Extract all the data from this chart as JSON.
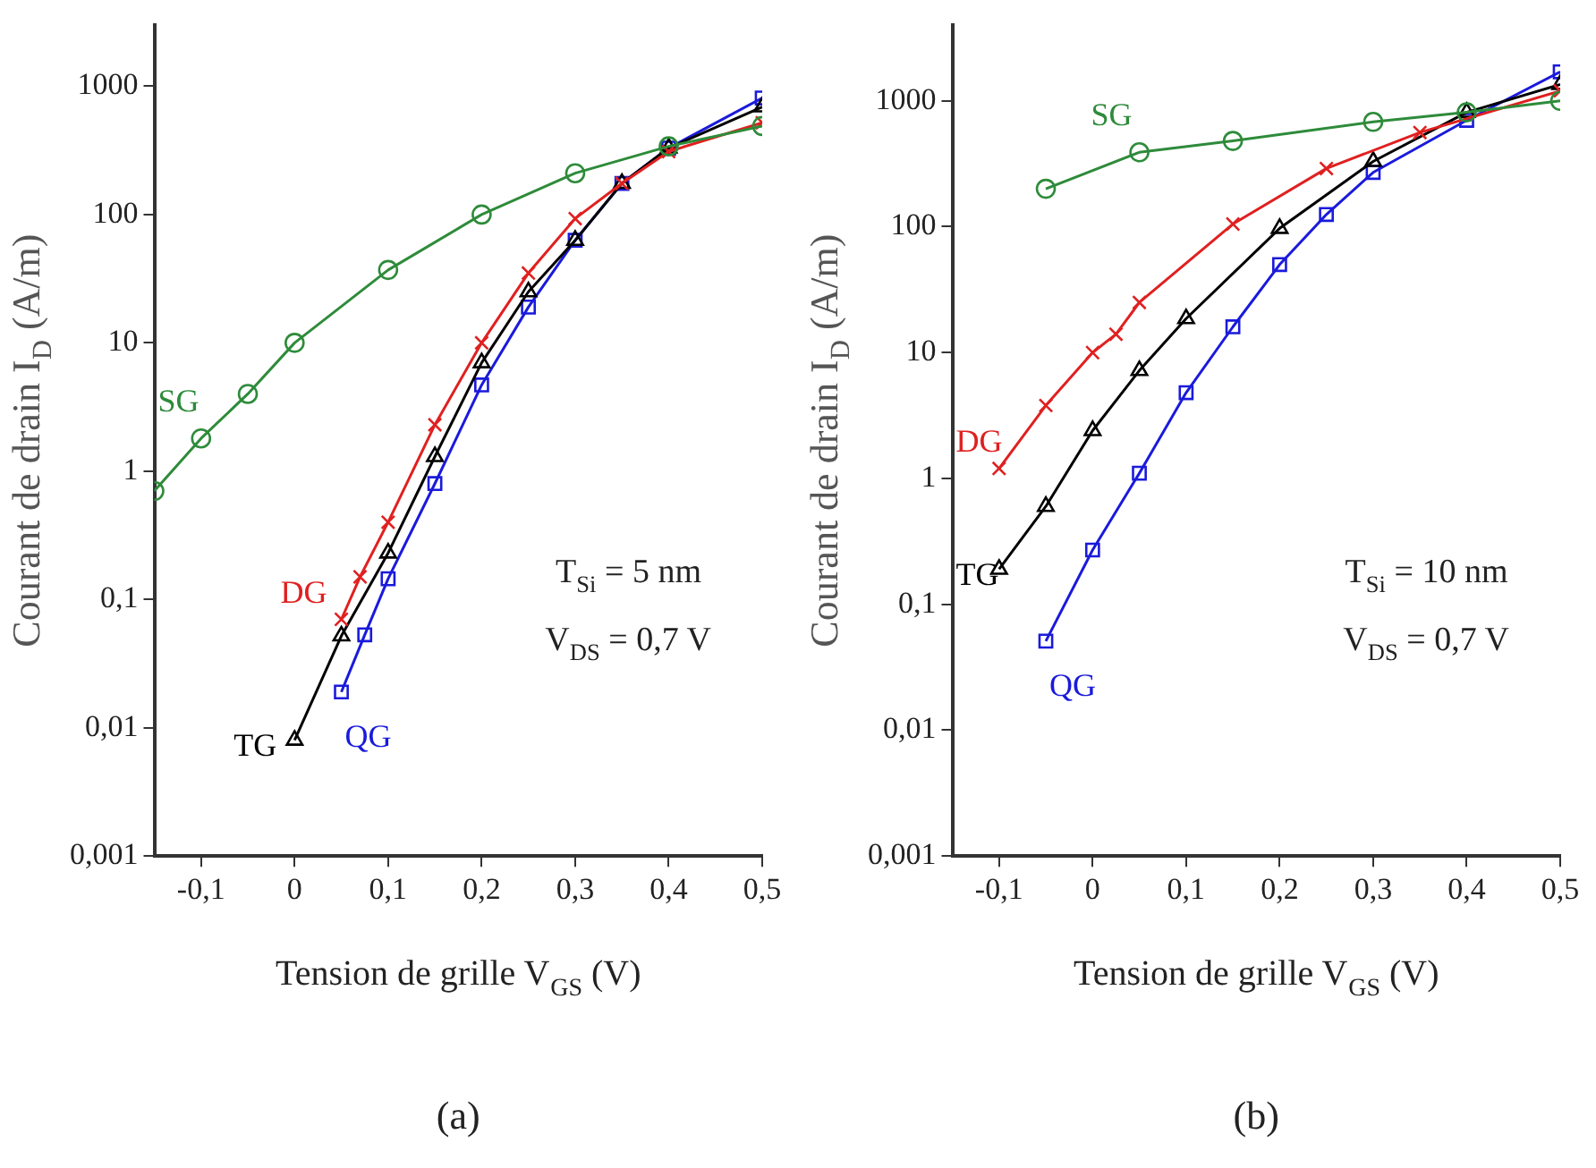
{
  "chart_data": [
    {
      "type": "line",
      "xlabel": "Tension de grille V$_{GS}$ (V)",
      "ylabel": "Courant de drain I$_{D}$ (A/m)",
      "log": "y",
      "grid": false,
      "legend": false,
      "line_style": "solid",
      "xlim": [
        -0.15,
        0.5
      ],
      "xticks": [
        {
          "value": -0.1,
          "label": "-0,1"
        },
        0,
        {
          "value": 0.1,
          "label": "0,1"
        },
        {
          "value": 0.2,
          "label": "0,2"
        },
        {
          "value": 0.3,
          "label": "0,3"
        },
        {
          "value": 0.4,
          "label": "0,4"
        },
        {
          "value": 0.5,
          "label": "0,5"
        }
      ],
      "ylim": [
        0.001,
        3000
      ],
      "yticks": [
        {
          "value": 0.001,
          "label": "0,001"
        },
        {
          "value": 0.01,
          "label": "0,01"
        },
        {
          "value": 0.1,
          "label": "0,1"
        },
        1,
        10,
        100,
        1000
      ],
      "series": [
        {
          "name": "SG",
          "color": "#2e8b3a",
          "marker": "circle",
          "x": [
            -0.15,
            -0.1,
            -0.05,
            0,
            0.1,
            0.2,
            0.3,
            0.4,
            0.5
          ],
          "values": [
            0.7,
            1.8,
            4,
            10,
            37,
            100,
            210,
            340,
            490
          ]
        },
        {
          "name": "DG",
          "color": "#e02020",
          "marker": "cross",
          "x": [
            0.05,
            0.07,
            0.1,
            0.15,
            0.2,
            0.25,
            0.3,
            0.35,
            0.4,
            0.5
          ],
          "values": [
            0.07,
            0.15,
            0.4,
            2.3,
            10,
            35,
            93,
            175,
            310,
            520
          ]
        },
        {
          "name": "TG",
          "color": "#000000",
          "marker": "triangle",
          "x": [
            0,
            0.05,
            0.1,
            0.15,
            0.2,
            0.25,
            0.3,
            0.35,
            0.4,
            0.5
          ],
          "values": [
            0.008,
            0.052,
            0.23,
            1.3,
            7,
            25,
            63,
            175,
            330,
            690
          ]
        },
        {
          "name": "QG",
          "color": "#1a1adc",
          "marker": "square",
          "x": [
            0.05,
            0.075,
            0.1,
            0.15,
            0.2,
            0.25,
            0.3,
            0.35,
            0.4,
            0.5
          ],
          "values": [
            0.019,
            0.053,
            0.145,
            0.8,
            4.7,
            19,
            63,
            175,
            330,
            810
          ]
        }
      ],
      "annotations": [
        "T$_{Si}$ = 5 nm",
        "V$_{DS}$ = 0,7 V",
        "(a)"
      ]
    },
    {
      "type": "line",
      "xlabel": "Tension de grille V$_{GS}$ (V)",
      "ylabel": "Courant de drain I$_{D}$ (A/m)",
      "log": "y",
      "grid": false,
      "legend": false,
      "line_style": "solid",
      "xlim": [
        -0.15,
        0.5
      ],
      "xticks": [
        {
          "value": -0.1,
          "label": "-0,1"
        },
        0,
        {
          "value": 0.1,
          "label": "0,1"
        },
        {
          "value": 0.2,
          "label": "0,2"
        },
        {
          "value": 0.3,
          "label": "0,3"
        },
        {
          "value": 0.4,
          "label": "0,4"
        },
        {
          "value": 0.5,
          "label": "0,5"
        }
      ],
      "ylim": [
        0.001,
        4000
      ],
      "yticks": [
        {
          "value": 0.001,
          "label": "0,001"
        },
        {
          "value": 0.01,
          "label": "0,01"
        },
        {
          "value": 0.1,
          "label": "0,1"
        },
        1,
        10,
        100,
        1000
      ],
      "series": [
        {
          "name": "SG",
          "color": "#2e8b3a",
          "marker": "circle",
          "x": [
            -0.05,
            0.05,
            0.15,
            0.3,
            0.4,
            0.5
          ],
          "values": [
            200,
            390,
            480,
            680,
            810,
            1000
          ]
        },
        {
          "name": "DG",
          "color": "#e02020",
          "marker": "cross",
          "x": [
            -0.1,
            -0.05,
            0,
            0.025,
            0.05,
            0.15,
            0.25,
            0.35,
            0.5
          ],
          "values": [
            1.2,
            3.8,
            10,
            14,
            25,
            105,
            290,
            560,
            1200
          ]
        },
        {
          "name": "TG",
          "color": "#000000",
          "marker": "triangle",
          "x": [
            -0.1,
            -0.05,
            0,
            0.05,
            0.1,
            0.2,
            0.3,
            0.4,
            0.5
          ],
          "values": [
            0.19,
            0.6,
            2.4,
            7.2,
            18.6,
            97,
            330,
            810,
            1350
          ]
        },
        {
          "name": "QG",
          "color": "#1a1adc",
          "marker": "square",
          "x": [
            -0.05,
            0,
            0.05,
            0.1,
            0.15,
            0.2,
            0.25,
            0.3,
            0.4,
            0.5
          ],
          "values": [
            0.051,
            0.27,
            1.1,
            4.8,
            16,
            50,
            125,
            270,
            700,
            1700
          ]
        }
      ],
      "annotations": [
        "T$_{Si}$ = 10 nm",
        "V$_{DS}$ = 0,7 V",
        "(b)"
      ]
    }
  ]
}
